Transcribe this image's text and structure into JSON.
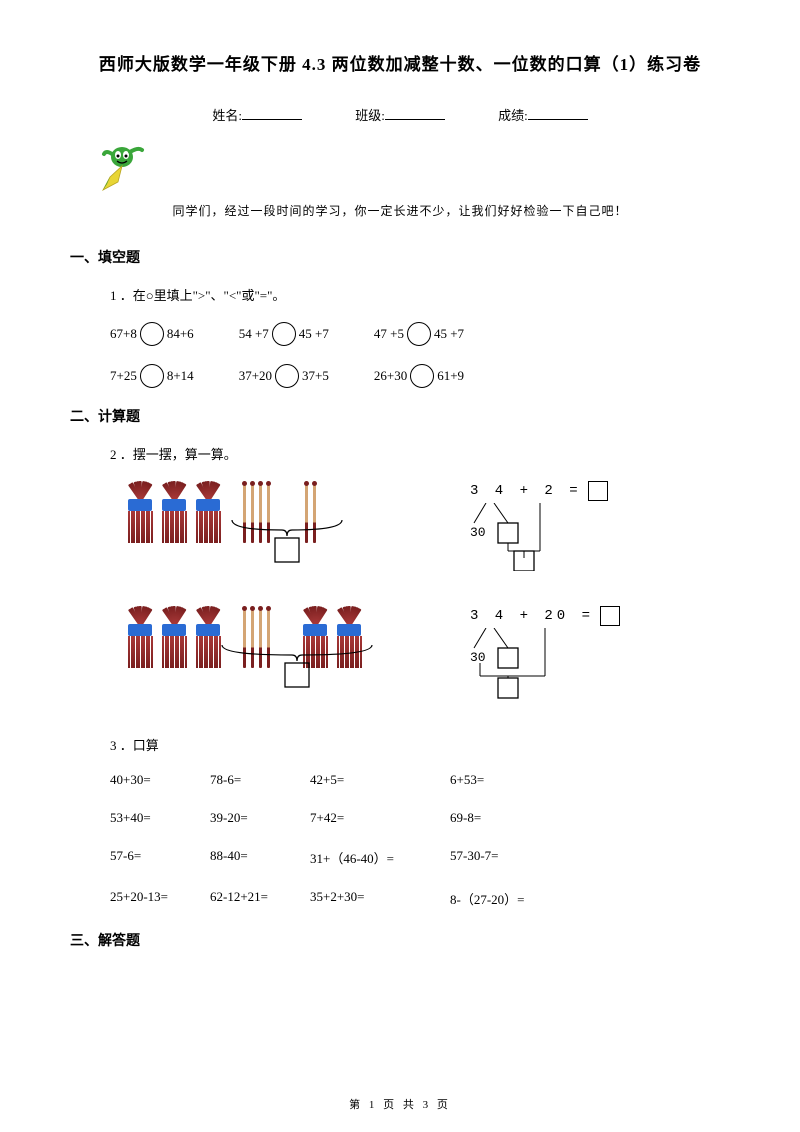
{
  "title": "西师大版数学一年级下册 4.3 两位数加减整十数、一位数的口算（1）练习卷",
  "info": {
    "name_label": "姓名:",
    "class_label": "班级:",
    "score_label": "成绩:"
  },
  "encouragement": "同学们，经过一段时间的学习，你一定长进不少，让我们好好检验一下自己吧！",
  "sections": {
    "fill": "一、填空题",
    "calc": "二、计算题",
    "answer": "三、解答题"
  },
  "q1": {
    "prompt": "1 ．在○里填上\">\"、\"<\"或\"=\"。",
    "row1": [
      {
        "left": "67+8",
        "right": "84+6"
      },
      {
        "left": "54 +7",
        "right": "45 +7"
      },
      {
        "left": "47 +5",
        "right": "45 +7"
      }
    ],
    "row2": [
      {
        "left": "7+25",
        "right": "8+14"
      },
      {
        "left": "37+20",
        "right": "37+5"
      },
      {
        "left": "26+30",
        "right": " 61+9"
      }
    ]
  },
  "q2": {
    "prompt": "2 ．摆一摆，算一算。",
    "expr1": "3 4 + 2 =",
    "expr1_base": "30",
    "expr2": "3 4 + 20 =",
    "expr2_base": "30"
  },
  "q3": {
    "prompt": "3 ．口算",
    "rows": [
      [
        "40+30=",
        "78-6=",
        "42+5=",
        "6+53="
      ],
      [
        "53+40=",
        "39-20=",
        "7+42=",
        "69-8="
      ],
      [
        "57-6=",
        "88-40=",
        "31+（46-40）=",
        "57-30-7="
      ],
      [
        "25+20-13=",
        "62-12+21=",
        "35+2+30=",
        "8-（27-20）="
      ]
    ]
  },
  "footer": "第 1 页 共 3 页",
  "colors": {
    "text": "#000000",
    "bg": "#ffffff",
    "bundle_band": "#2a6bd4",
    "stick_dark": "#7a1f1f",
    "stick_light": "#d4a574",
    "pencil_green": "#3aa63a",
    "pencil_yellow": "#e8d535"
  }
}
